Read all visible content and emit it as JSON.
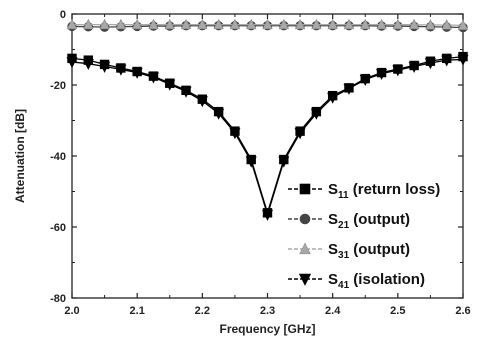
{
  "chart_data": {
    "type": "line",
    "xlabel": "Frequency [GHz]",
    "ylabel": "Attenuation [dB]",
    "xlim": [
      2.0,
      2.6
    ],
    "ylim": [
      -80,
      0
    ],
    "xticks": [
      "2.0",
      "2.1",
      "2.2",
      "2.3",
      "2.4",
      "2.5",
      "2.6"
    ],
    "yticks": [
      "0",
      "-20",
      "-40",
      "-60",
      "-80"
    ],
    "grid": false,
    "legend_position": "bottom-right",
    "series": [
      {
        "name": "S11 (return loss)",
        "label_main": "S",
        "label_sub": "11",
        "label_rest": " (return loss)",
        "marker": "square",
        "color": "#000000",
        "x": [
          2.0,
          2.025,
          2.05,
          2.075,
          2.1,
          2.125,
          2.15,
          2.175,
          2.2,
          2.225,
          2.25,
          2.275,
          2.3,
          2.325,
          2.35,
          2.375,
          2.4,
          2.425,
          2.45,
          2.475,
          2.5,
          2.525,
          2.55,
          2.575,
          2.6
        ],
        "y": [
          -12.5,
          -13,
          -14.2,
          -15.2,
          -16.2,
          -17.5,
          -19.5,
          -21.5,
          -24,
          -27.5,
          -33,
          -41,
          -56,
          -41,
          -33,
          -27.5,
          -23,
          -20.8,
          -18.2,
          -16.5,
          -15.5,
          -14.5,
          -13.3,
          -12.5,
          -12
        ]
      },
      {
        "name": "S21 (output)",
        "label_main": "S",
        "label_sub": "21",
        "label_rest": " (output)",
        "marker": "circle",
        "color": "#444444",
        "x": [
          2.0,
          2.025,
          2.05,
          2.075,
          2.1,
          2.125,
          2.15,
          2.175,
          2.2,
          2.225,
          2.25,
          2.275,
          2.3,
          2.325,
          2.35,
          2.375,
          2.4,
          2.425,
          2.45,
          2.475,
          2.5,
          2.525,
          2.55,
          2.575,
          2.6
        ],
        "y": [
          -3.5,
          -3.6,
          -3.7,
          -3.6,
          -3.5,
          -3.4,
          -3.4,
          -3.3,
          -3.3,
          -3.3,
          -3.3,
          -3.3,
          -3.3,
          -3.3,
          -3.3,
          -3.3,
          -3.3,
          -3.3,
          -3.3,
          -3.4,
          -3.4,
          -3.5,
          -3.6,
          -3.7,
          -3.8
        ]
      },
      {
        "name": "S31 (output)",
        "label_main": "S",
        "label_sub": "31",
        "label_rest": " (output)",
        "marker": "triangle-up",
        "color": "#a8a8a8",
        "x": [
          2.0,
          2.025,
          2.05,
          2.075,
          2.1,
          2.125,
          2.15,
          2.175,
          2.2,
          2.225,
          2.25,
          2.275,
          2.3,
          2.325,
          2.35,
          2.375,
          2.4,
          2.425,
          2.45,
          2.475,
          2.5,
          2.525,
          2.55,
          2.575,
          2.6
        ],
        "y": [
          -3.0,
          -3.0,
          -3.0,
          -3.0,
          -3.0,
          -3.0,
          -3.0,
          -3.0,
          -3.0,
          -3.0,
          -3.0,
          -3.0,
          -3.0,
          -3.0,
          -3.0,
          -3.0,
          -3.0,
          -3.0,
          -3.0,
          -3.0,
          -3.0,
          -3.0,
          -3.1,
          -3.1,
          -3.2
        ]
      },
      {
        "name": "S41 (isolation)",
        "label_main": "S",
        "label_sub": "41",
        "label_rest": " (isolation)",
        "marker": "triangle-down",
        "color": "#000000",
        "x": [
          2.0,
          2.025,
          2.05,
          2.075,
          2.1,
          2.125,
          2.15,
          2.175,
          2.2,
          2.225,
          2.25,
          2.275,
          2.3,
          2.325,
          2.35,
          2.375,
          2.4,
          2.425,
          2.45,
          2.475,
          2.5,
          2.525,
          2.55,
          2.575,
          2.6
        ],
        "y": [
          -13.5,
          -14,
          -14.8,
          -15.6,
          -16.5,
          -17.8,
          -19.8,
          -21.8,
          -24.5,
          -28,
          -33.5,
          -41.5,
          -56.5,
          -41.5,
          -33.5,
          -28,
          -23.5,
          -21,
          -18.5,
          -16.8,
          -15.8,
          -14.8,
          -13.8,
          -13,
          -12.8
        ]
      }
    ]
  }
}
